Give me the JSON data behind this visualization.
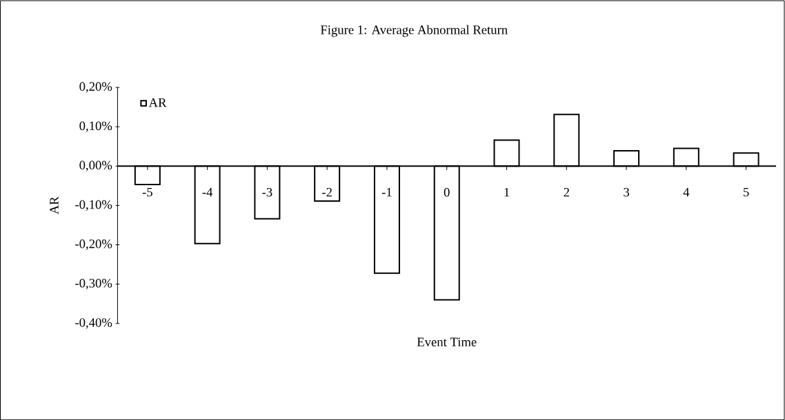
{
  "chart_data": {
    "type": "bar",
    "title": "Figure 1: Average Abnormal Return",
    "xlabel": "Event Time",
    "ylabel": "AR",
    "categories": [
      "-5",
      "-4",
      "-3",
      "-2",
      "-1",
      "0",
      "1",
      "2",
      "3",
      "4",
      "5"
    ],
    "series": [
      {
        "name": "AR",
        "color": "#ffffff",
        "values": [
          -0.047,
          -0.197,
          -0.134,
          -0.089,
          -0.272,
          -0.34,
          0.066,
          0.131,
          0.039,
          0.045,
          0.033
        ]
      }
    ],
    "ylim": [
      -0.4,
      0.2
    ],
    "yticks": [
      {
        "value": 0.2,
        "label": "0,20%"
      },
      {
        "value": 0.1,
        "label": "0,10%"
      },
      {
        "value": 0,
        "label": "0,00%"
      },
      {
        "value": -0.1,
        "label": "-0,10%"
      },
      {
        "value": -0.2,
        "label": "-0,20%"
      },
      {
        "value": -0.3,
        "label": "-0,30%"
      },
      {
        "value": -0.4,
        "label": "-0,40%"
      }
    ],
    "grid": false,
    "legend": "top left"
  }
}
